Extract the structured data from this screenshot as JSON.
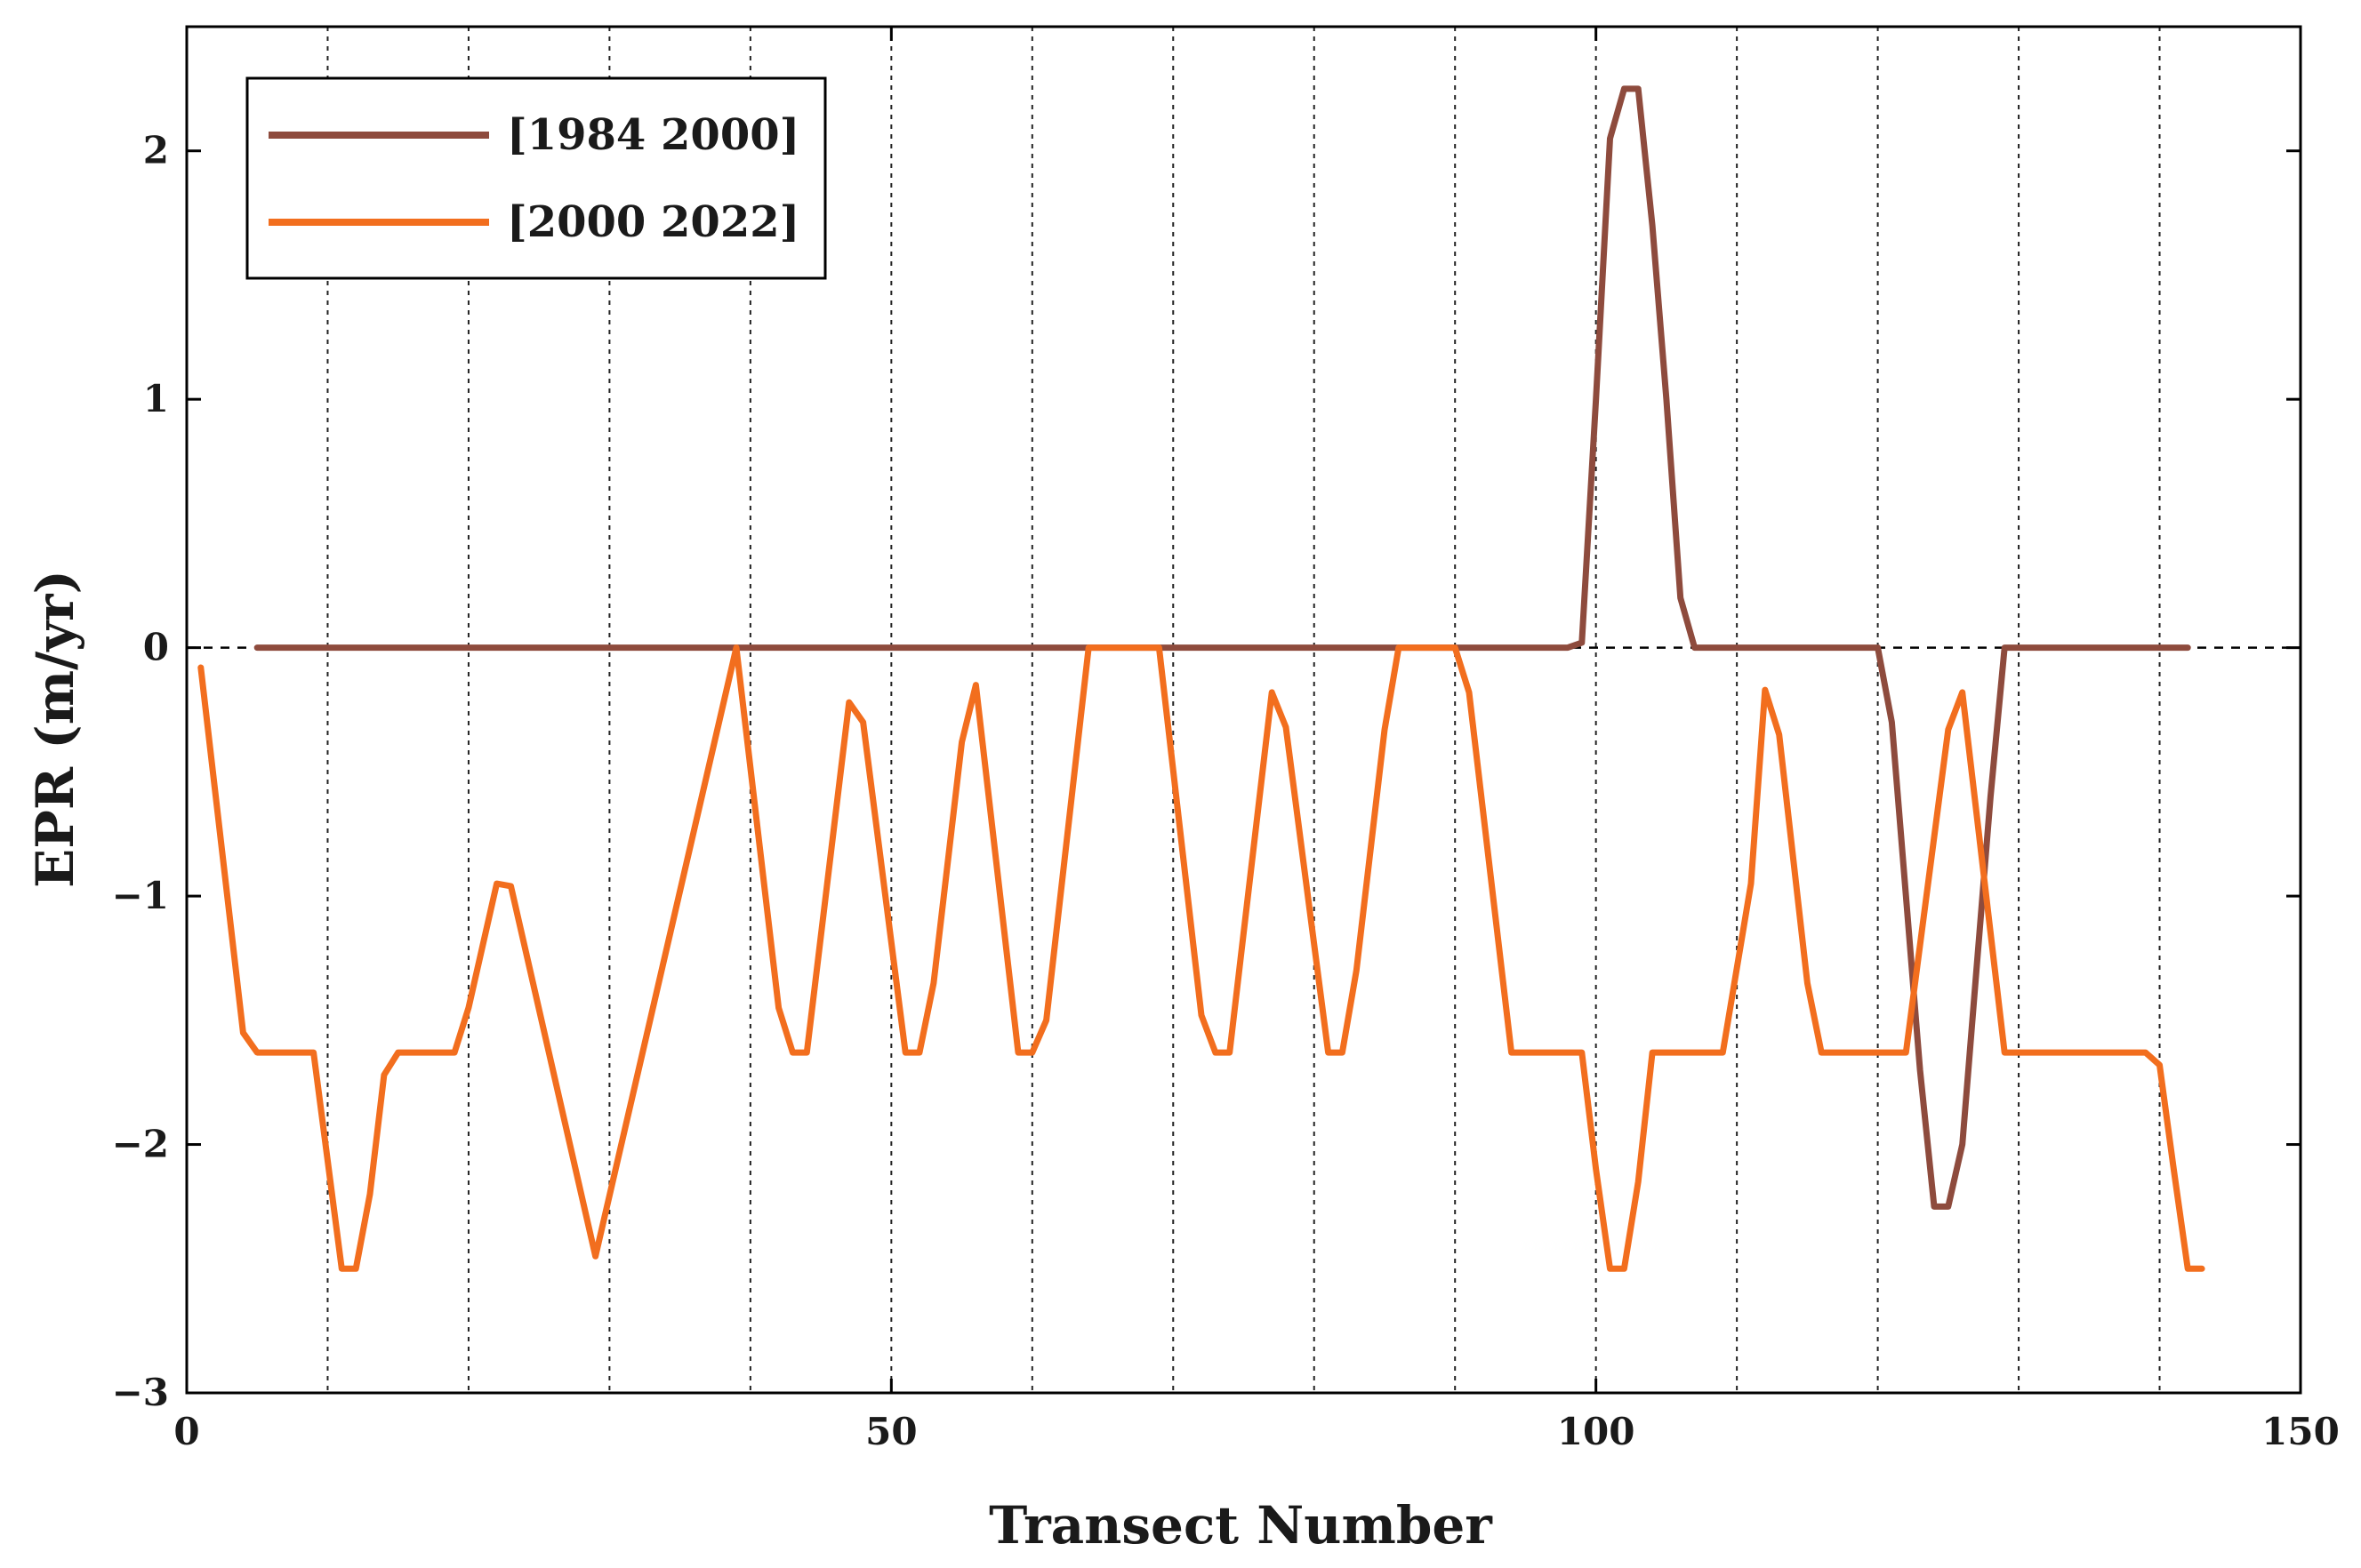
{
  "chart_data": {
    "type": "line",
    "xlabel": "Transect Number",
    "ylabel": "EPR (m/yr)",
    "xlim": [
      0,
      150
    ],
    "ylim": [
      -3,
      2.5
    ],
    "xticks": [
      0,
      50,
      100,
      150
    ],
    "yticks": [
      -3,
      -2,
      -1,
      0,
      1,
      2
    ],
    "xtick_labels": [
      "0",
      "50",
      "100",
      "150"
    ],
    "ytick_labels": [
      "−3",
      "−2",
      "−1",
      "0",
      "1",
      "2"
    ],
    "vertical_gridlines": [
      10,
      20,
      30,
      40,
      50,
      60,
      70,
      80,
      90,
      100,
      110,
      120,
      130,
      140
    ],
    "zero_reference_line": {
      "y": 0,
      "style": "dashed",
      "color": "#000000"
    },
    "grid": "vertical dotted",
    "legend_position": "top-left",
    "series": [
      {
        "name": "[1984 2000]",
        "color": "#8e4b3d",
        "points": [
          [
            5,
            0
          ],
          [
            98,
            0
          ],
          [
            99,
            0.02
          ],
          [
            100,
            1.0
          ],
          [
            101,
            2.05
          ],
          [
            102,
            2.25
          ],
          [
            103,
            2.25
          ],
          [
            104,
            1.7
          ],
          [
            105,
            1.0
          ],
          [
            106,
            0.2
          ],
          [
            107,
            0
          ],
          [
            120,
            0
          ],
          [
            121,
            -0.3
          ],
          [
            122,
            -1.0
          ],
          [
            123,
            -1.7
          ],
          [
            124,
            -2.25
          ],
          [
            125,
            -2.25
          ],
          [
            126,
            -2.0
          ],
          [
            127,
            -1.3
          ],
          [
            128,
            -0.6
          ],
          [
            129,
            0
          ],
          [
            142,
            0
          ]
        ]
      },
      {
        "name": "[2000 2022]",
        "color": "#f26e1e",
        "points": [
          [
            1,
            -0.08
          ],
          [
            4,
            -1.55
          ],
          [
            5,
            -1.63
          ],
          [
            9,
            -1.63
          ],
          [
            11,
            -2.5
          ],
          [
            12,
            -2.5
          ],
          [
            13,
            -2.2
          ],
          [
            14,
            -1.72
          ],
          [
            15,
            -1.63
          ],
          [
            19,
            -1.63
          ],
          [
            20,
            -1.45
          ],
          [
            22,
            -0.95
          ],
          [
            23,
            -0.96
          ],
          [
            29,
            -2.45
          ],
          [
            39,
            0
          ],
          [
            42,
            -1.45
          ],
          [
            43,
            -1.63
          ],
          [
            44,
            -1.63
          ],
          [
            47,
            -0.22
          ],
          [
            48,
            -0.3
          ],
          [
            51,
            -1.63
          ],
          [
            52,
            -1.63
          ],
          [
            53,
            -1.35
          ],
          [
            55,
            -0.38
          ],
          [
            56,
            -0.15
          ],
          [
            59,
            -1.63
          ],
          [
            60,
            -1.63
          ],
          [
            61,
            -1.5
          ],
          [
            64,
            0
          ],
          [
            69,
            0
          ],
          [
            72,
            -1.48
          ],
          [
            73,
            -1.63
          ],
          [
            74,
            -1.63
          ],
          [
            77,
            -0.18
          ],
          [
            78,
            -0.32
          ],
          [
            81,
            -1.63
          ],
          [
            82,
            -1.63
          ],
          [
            83,
            -1.3
          ],
          [
            85,
            -0.33
          ],
          [
            86,
            0
          ],
          [
            90,
            0
          ],
          [
            91,
            -0.18
          ],
          [
            94,
            -1.63
          ],
          [
            99,
            -1.63
          ],
          [
            100,
            -2.1
          ],
          [
            101,
            -2.5
          ],
          [
            102,
            -2.5
          ],
          [
            103,
            -2.15
          ],
          [
            104,
            -1.63
          ],
          [
            109,
            -1.63
          ],
          [
            111,
            -0.95
          ],
          [
            112,
            -0.17
          ],
          [
            113,
            -0.35
          ],
          [
            115,
            -1.35
          ],
          [
            116,
            -1.63
          ],
          [
            122,
            -1.63
          ],
          [
            125,
            -0.33
          ],
          [
            126,
            -0.18
          ],
          [
            129,
            -1.63
          ],
          [
            139,
            -1.63
          ],
          [
            140,
            -1.68
          ],
          [
            141,
            -2.1
          ],
          [
            142,
            -2.5
          ],
          [
            143,
            -2.5
          ]
        ]
      }
    ]
  }
}
